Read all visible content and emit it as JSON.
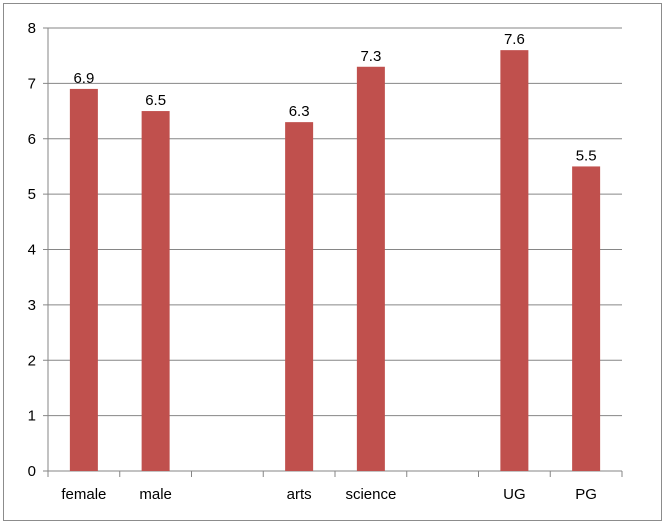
{
  "chart_data": {
    "type": "bar",
    "categories": [
      "female",
      "male",
      "",
      "arts",
      "science",
      "",
      "UG",
      "PG"
    ],
    "values": [
      6.9,
      6.5,
      null,
      6.3,
      7.3,
      null,
      7.6,
      5.5
    ],
    "data_labels": [
      "6.9",
      "6.5",
      "",
      "6.3",
      "7.3",
      "",
      "7.6",
      "5.5"
    ],
    "ylim": [
      0,
      8
    ],
    "y_ticks": [
      0,
      1,
      2,
      3,
      4,
      5,
      6,
      7,
      8
    ],
    "grid": true,
    "legend": "none",
    "title": "",
    "xlabel": "",
    "ylabel": "",
    "bar_color": "#c0504d",
    "grid_color": "#868686"
  }
}
